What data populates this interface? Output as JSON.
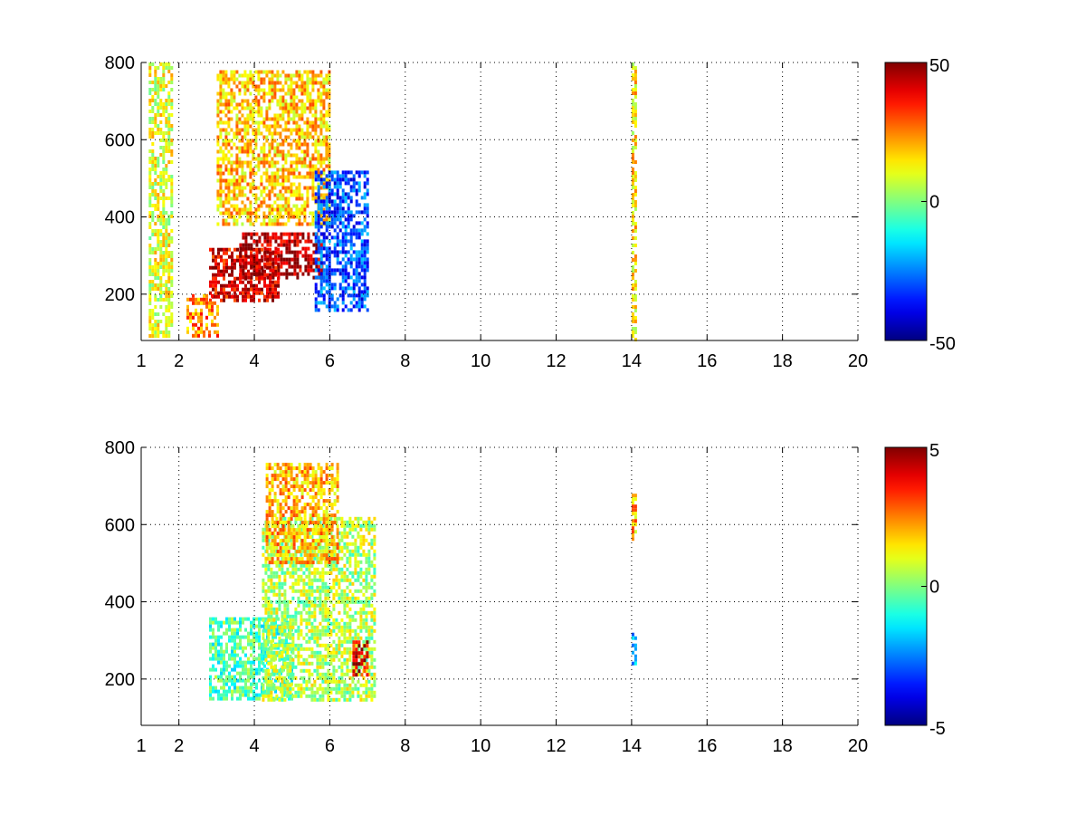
{
  "chart_data": [
    {
      "type": "heatmap",
      "title": "",
      "xlabel": "",
      "ylabel": "",
      "xlim": [
        1,
        20
      ],
      "ylim": [
        80,
        800
      ],
      "grid": true,
      "grid_style": "dotted",
      "x_ticks": [
        1,
        2,
        4,
        6,
        8,
        10,
        12,
        14,
        16,
        18,
        20
      ],
      "x_tick_labels": [
        "1",
        "2",
        "4",
        "6",
        "8",
        "10",
        "12",
        "14",
        "16",
        "18",
        "20"
      ],
      "y_ticks": [
        200,
        400,
        600,
        800
      ],
      "y_tick_labels": [
        "200",
        "400",
        "600",
        "800"
      ],
      "colorbar": {
        "colormap": "jet",
        "clim": [
          -50,
          50
        ],
        "ticks": [
          -50,
          0,
          50
        ],
        "tick_labels": [
          "-50",
          "0",
          "50"
        ],
        "placement": "right"
      },
      "regions": [
        {
          "x": [
            1.2,
            1.8
          ],
          "y": [
            90,
            800
          ],
          "value": 10
        },
        {
          "x": [
            2.8,
            4.6
          ],
          "y": [
            180,
            320
          ],
          "value": 40
        },
        {
          "x": [
            3.6,
            5.8
          ],
          "y": [
            240,
            360
          ],
          "value": 45
        },
        {
          "x": [
            3.0,
            6.0
          ],
          "y": [
            380,
            780
          ],
          "value": 18
        },
        {
          "x": [
            5.6,
            7.0
          ],
          "y": [
            160,
            520
          ],
          "value": -30
        },
        {
          "x": [
            2.2,
            3.0
          ],
          "y": [
            90,
            200
          ],
          "value": 25
        },
        {
          "x": [
            14.0,
            14.1
          ],
          "y": [
            80,
            800
          ],
          "value": 15
        }
      ]
    },
    {
      "type": "heatmap",
      "title": "",
      "xlabel": "",
      "ylabel": "",
      "xlim": [
        1,
        20
      ],
      "ylim": [
        80,
        800
      ],
      "grid": true,
      "grid_style": "dotted",
      "x_ticks": [
        1,
        2,
        4,
        6,
        8,
        10,
        12,
        14,
        16,
        18,
        20
      ],
      "x_tick_labels": [
        "1",
        "2",
        "4",
        "6",
        "8",
        "10",
        "12",
        "14",
        "16",
        "18",
        "20"
      ],
      "y_ticks": [
        200,
        400,
        600,
        800
      ],
      "y_tick_labels": [
        "200",
        "400",
        "600",
        "800"
      ],
      "colorbar": {
        "colormap": "jet",
        "clim": [
          -5,
          5
        ],
        "ticks": [
          -5,
          0,
          5
        ],
        "tick_labels": [
          "-5",
          "0",
          "5"
        ],
        "placement": "right"
      },
      "regions": [
        {
          "x": [
            2.8,
            5.0
          ],
          "y": [
            150,
            360
          ],
          "value": -0.5
        },
        {
          "x": [
            4.2,
            7.2
          ],
          "y": [
            150,
            620
          ],
          "value": 0.5
        },
        {
          "x": [
            4.3,
            6.2
          ],
          "y": [
            500,
            760
          ],
          "value": 2
        },
        {
          "x": [
            6.6,
            7.0
          ],
          "y": [
            210,
            300
          ],
          "value": 4
        },
        {
          "x": [
            14.0,
            14.1
          ],
          "y": [
            560,
            680
          ],
          "value": 2
        },
        {
          "x": [
            14.0,
            14.1
          ],
          "y": [
            240,
            320
          ],
          "value": -2
        }
      ]
    }
  ]
}
